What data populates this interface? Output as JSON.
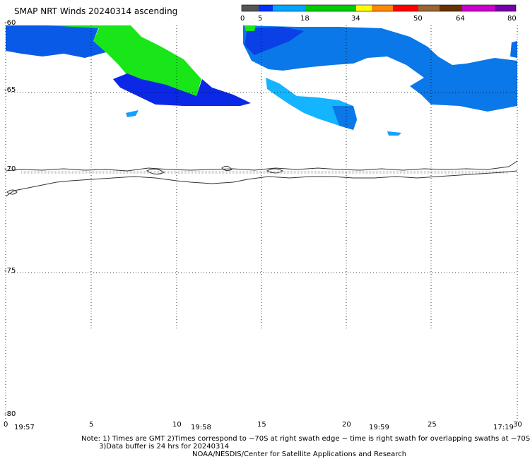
{
  "title": "SMAP NRT Winds 20240314 ascending",
  "colorbar": {
    "labels": [
      "0",
      "5",
      "18",
      "34",
      "50",
      "64",
      "80"
    ],
    "colors": [
      "#555555",
      "#888888",
      "#0033ff",
      "#00a6ff",
      "#00cc00",
      "#ffff00",
      "#ff8800",
      "#ff0000",
      "#996633",
      "#663300",
      "#cc00cc",
      "#7700aa"
    ]
  },
  "lat_ticks": [
    "-60",
    "-65",
    "-70",
    "-75",
    "-80"
  ],
  "lon_ticks": [
    "0",
    "5",
    "10",
    "15",
    "20",
    "25",
    "30"
  ],
  "time_labels": [
    "19:57",
    "19:58",
    "19:59",
    "17:19"
  ],
  "notes": {
    "line1": "Note: 1) Times are GMT 2)Times correspond to ~70S at right swath edge ~ time is right swath for overlapping swaths at ~70S",
    "line2": "3)Data buffer is 24 hrs for 20240314",
    "line3": "NOAA/NESDIS/Center for Satellite Applications and Research"
  },
  "wind_colors": {
    "dark_blue": "#0a28e6",
    "mid_blue": "#0a78e8",
    "light_blue": "#14b4ff",
    "green": "#19e619"
  }
}
